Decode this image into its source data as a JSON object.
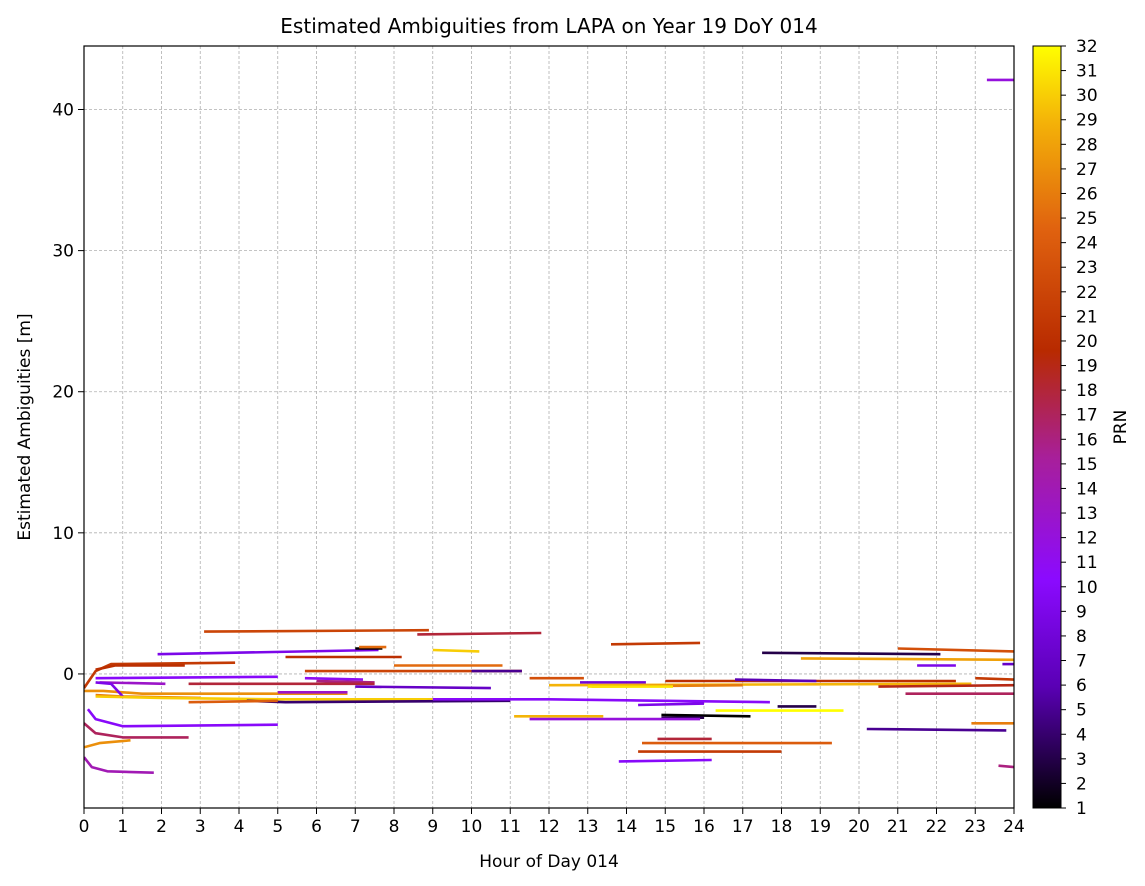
{
  "chart_data": {
    "type": "line",
    "title": "Estimated Ambiguities from LAPA on Year 19 DoY 014",
    "xlabel": "Hour of Day 014",
    "ylabel": "Estimated Ambiguities [m]",
    "xlim": [
      0,
      24
    ],
    "ylim": [
      -9.5,
      44.5
    ],
    "x_ticks": [
      0,
      1,
      2,
      3,
      4,
      5,
      6,
      7,
      8,
      9,
      10,
      11,
      12,
      13,
      14,
      15,
      16,
      17,
      18,
      19,
      20,
      21,
      22,
      23,
      24
    ],
    "y_ticks": [
      0,
      10,
      20,
      30,
      40
    ],
    "grid": true,
    "colorbar": {
      "label": "PRN",
      "range": [
        1,
        32
      ],
      "ticks": [
        1,
        2,
        3,
        4,
        5,
        6,
        7,
        8,
        9,
        10,
        11,
        12,
        13,
        14,
        15,
        16,
        17,
        18,
        19,
        20,
        21,
        22,
        23,
        24,
        25,
        26,
        27,
        28,
        29,
        30,
        31,
        32
      ],
      "colormap": "gnuplot",
      "colormap_stops": [
        "#000000",
        "#5a00b5",
        "#8b0aff",
        "#a81f9a",
        "#b82a00",
        "#e0620f",
        "#f4b208",
        "#ffff00"
      ]
    },
    "series": [
      {
        "prn": 12,
        "x": [
          23.3,
          24.0
        ],
        "y": [
          42.1,
          42.1
        ]
      },
      {
        "prn": 22,
        "x": [
          3.1,
          8.9
        ],
        "y": [
          3.0,
          3.1
        ]
      },
      {
        "prn": 18,
        "x": [
          8.6,
          11.8
        ],
        "y": [
          2.8,
          2.9
        ]
      },
      {
        "prn": 21,
        "x": [
          13.6,
          15.9
        ],
        "y": [
          2.1,
          2.2
        ]
      },
      {
        "prn": 23,
        "x": [
          21.0,
          24.0
        ],
        "y": [
          1.8,
          1.6
        ]
      },
      {
        "prn": 3,
        "x": [
          17.5,
          22.1
        ],
        "y": [
          1.5,
          1.4
        ]
      },
      {
        "prn": 9,
        "x": [
          1.9,
          7.6
        ],
        "y": [
          1.4,
          1.7
        ]
      },
      {
        "prn": 1,
        "x": [
          7.0,
          7.7
        ],
        "y": [
          1.8,
          1.8
        ]
      },
      {
        "prn": 25,
        "x": [
          7.1,
          7.8
        ],
        "y": [
          1.9,
          1.9
        ]
      },
      {
        "prn": 30,
        "x": [
          9.0,
          10.2
        ],
        "y": [
          1.7,
          1.6
        ]
      },
      {
        "prn": 20,
        "x": [
          5.2,
          8.2
        ],
        "y": [
          1.2,
          1.2
        ]
      },
      {
        "prn": 28,
        "x": [
          18.5,
          24.0
        ],
        "y": [
          1.1,
          1.0
        ]
      },
      {
        "prn": 9,
        "x": [
          21.5,
          22.5
        ],
        "y": [
          0.6,
          0.6
        ]
      },
      {
        "prn": 7,
        "x": [
          23.7,
          24.0
        ],
        "y": [
          0.7,
          0.7
        ]
      },
      {
        "prn": 21,
        "x": [
          0.0,
          0.3,
          0.7,
          3.9
        ],
        "y": [
          -1.0,
          0.2,
          0.7,
          0.8
        ]
      },
      {
        "prn": 20,
        "x": [
          0.3,
          0.8,
          2.6
        ],
        "y": [
          0.3,
          0.6,
          0.6
        ]
      },
      {
        "prn": 25,
        "x": [
          8.0,
          10.8
        ],
        "y": [
          0.6,
          0.6
        ]
      },
      {
        "prn": 22,
        "x": [
          5.7,
          11.3
        ],
        "y": [
          0.2,
          0.2
        ]
      },
      {
        "prn": 5,
        "x": [
          10.0,
          11.3
        ],
        "y": [
          0.2,
          0.2
        ]
      },
      {
        "prn": 23,
        "x": [
          11.5,
          12.9
        ],
        "y": [
          -0.3,
          -0.3
        ]
      },
      {
        "prn": 10,
        "x": [
          0.3,
          5.0
        ],
        "y": [
          -0.3,
          -0.2
        ]
      },
      {
        "prn": 11,
        "x": [
          5.7,
          7.2
        ],
        "y": [
          -0.3,
          -0.4
        ]
      },
      {
        "prn": 16,
        "x": [
          6.0,
          7.5
        ],
        "y": [
          -0.5,
          -0.6
        ]
      },
      {
        "prn": 18,
        "x": [
          2.7,
          7.5
        ],
        "y": [
          -0.7,
          -0.7
        ]
      },
      {
        "prn": 7,
        "x": [
          7.0,
          10.5
        ],
        "y": [
          -0.9,
          -1.0
        ]
      },
      {
        "prn": 13,
        "x": [
          0.4,
          2.1
        ],
        "y": [
          -0.6,
          -0.7
        ]
      },
      {
        "prn": 20,
        "x": [
          15.0,
          22.5
        ],
        "y": [
          -0.5,
          -0.5
        ]
      },
      {
        "prn": 6,
        "x": [
          16.8,
          18.9
        ],
        "y": [
          -0.4,
          -0.5
        ]
      },
      {
        "prn": 8,
        "x": [
          12.8,
          14.5
        ],
        "y": [
          -0.6,
          -0.6
        ]
      },
      {
        "prn": 29,
        "x": [
          12.0,
          22.9
        ],
        "y": [
          -0.8,
          -0.7
        ]
      },
      {
        "prn": 26,
        "x": [
          13.1,
          17.0
        ],
        "y": [
          -0.9,
          -0.8
        ]
      },
      {
        "prn": 31,
        "x": [
          13.0,
          15.2
        ],
        "y": [
          -0.9,
          -0.9
        ]
      },
      {
        "prn": 19,
        "x": [
          20.5,
          24.0
        ],
        "y": [
          -0.9,
          -0.8
        ]
      },
      {
        "prn": 21,
        "x": [
          23.0,
          24.0
        ],
        "y": [
          -0.3,
          -0.4
        ]
      },
      {
        "prn": 17,
        "x": [
          21.2,
          24.0
        ],
        "y": [
          -1.4,
          -1.4
        ]
      },
      {
        "prn": 27,
        "x": [
          0.0,
          0.5,
          1.5,
          6.8
        ],
        "y": [
          -1.2,
          -1.2,
          -1.4,
          -1.4
        ]
      },
      {
        "prn": 13,
        "x": [
          5.0,
          6.8
        ],
        "y": [
          -1.3,
          -1.3
        ]
      },
      {
        "prn": 26,
        "x": [
          0.3,
          1.0,
          3.0
        ],
        "y": [
          -1.5,
          -1.6,
          -1.7
        ]
      },
      {
        "prn": 9,
        "x": [
          0.3,
          0.7,
          1.0
        ],
        "y": [
          -0.6,
          -0.7,
          -1.6
        ]
      },
      {
        "prn": 30,
        "x": [
          0.3,
          2.0,
          5.0,
          9.0
        ],
        "y": [
          -1.6,
          -1.7,
          -1.8,
          -1.8
        ]
      },
      {
        "prn": 4,
        "x": [
          4.2,
          5.2,
          11.0
        ],
        "y": [
          -1.9,
          -2.0,
          -1.9
        ]
      },
      {
        "prn": 10,
        "x": [
          9.0,
          12.0,
          17.7
        ],
        "y": [
          -1.8,
          -1.8,
          -2.0
        ]
      },
      {
        "prn": 24,
        "x": [
          2.7,
          5.0
        ],
        "y": [
          -2.0,
          -1.9
        ]
      },
      {
        "prn": 9,
        "x": [
          14.3,
          16.0
        ],
        "y": [
          -2.2,
          -2.1
        ]
      },
      {
        "prn": 3,
        "x": [
          17.9,
          18.9
        ],
        "y": [
          -2.3,
          -2.3
        ]
      },
      {
        "prn": 32,
        "x": [
          16.3,
          19.6
        ],
        "y": [
          -2.6,
          -2.6
        ]
      },
      {
        "prn": 1,
        "x": [
          14.9,
          17.2
        ],
        "y": [
          -2.9,
          -3.0
        ]
      },
      {
        "prn": 3,
        "x": [
          14.9,
          16.0
        ],
        "y": [
          -3.1,
          -3.1
        ]
      },
      {
        "prn": 29,
        "x": [
          11.1,
          13.4
        ],
        "y": [
          -3.0,
          -3.0
        ]
      },
      {
        "prn": 12,
        "x": [
          11.5,
          15.9
        ],
        "y": [
          -3.2,
          -3.2
        ]
      },
      {
        "prn": 26,
        "x": [
          22.9,
          24.0
        ],
        "y": [
          -3.5,
          -3.5
        ]
      },
      {
        "prn": 10,
        "x": [
          0.1,
          0.3,
          1.0,
          5.0
        ],
        "y": [
          -2.5,
          -3.2,
          -3.7,
          -3.6
        ]
      },
      {
        "prn": 5,
        "x": [
          20.2,
          23.8
        ],
        "y": [
          -3.9,
          -4.0
        ]
      },
      {
        "prn": 17,
        "x": [
          0.0,
          0.3,
          1.0,
          2.7
        ],
        "y": [
          -3.5,
          -4.2,
          -4.5,
          -4.5
        ]
      },
      {
        "prn": 27,
        "x": [
          0.0,
          0.4,
          1.2
        ],
        "y": [
          -5.2,
          -4.9,
          -4.7
        ]
      },
      {
        "prn": 18,
        "x": [
          14.8,
          16.2
        ],
        "y": [
          -4.6,
          -4.6
        ]
      },
      {
        "prn": 24,
        "x": [
          14.4,
          19.3
        ],
        "y": [
          -4.9,
          -4.9
        ]
      },
      {
        "prn": 21,
        "x": [
          14.3,
          18.0
        ],
        "y": [
          -5.5,
          -5.5
        ]
      },
      {
        "prn": 10,
        "x": [
          13.8,
          16.2
        ],
        "y": [
          -6.2,
          -6.1
        ]
      },
      {
        "prn": 14,
        "x": [
          0.0,
          0.2,
          0.6,
          1.8
        ],
        "y": [
          -5.9,
          -6.6,
          -6.9,
          -7.0
        ]
      },
      {
        "prn": 16,
        "x": [
          23.6,
          24.0
        ],
        "y": [
          -6.5,
          -6.6
        ]
      }
    ]
  }
}
